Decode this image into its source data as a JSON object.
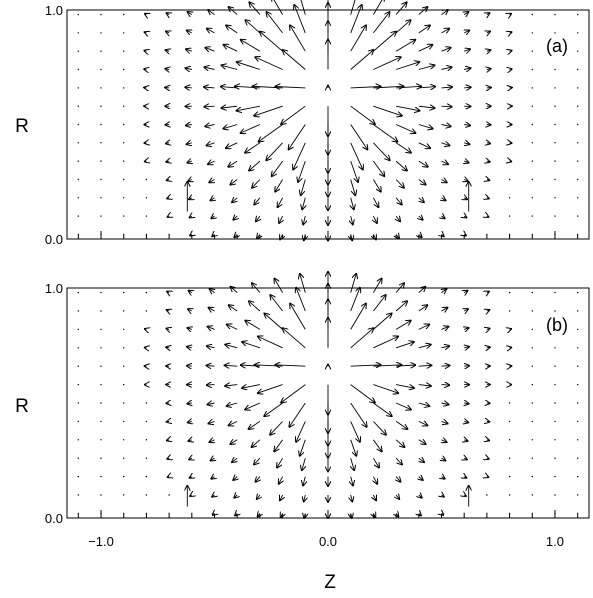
{
  "chart_data": [
    {
      "type": "quiver",
      "panel_label": "(a)",
      "xlim": [
        -1.15,
        1.15
      ],
      "ylim": [
        0.0,
        1.0
      ],
      "y_ticks": [
        {
          "value": 0.0,
          "label": "0.0"
        },
        {
          "value": 1.0,
          "label": "1.0"
        }
      ],
      "ylabel": "R",
      "x_grid": [
        -1.1,
        -1.0,
        -0.9,
        -0.8,
        -0.7,
        -0.6,
        -0.5,
        -0.4,
        -0.3,
        -0.2,
        -0.1,
        0.0,
        0.1,
        0.2,
        0.3,
        0.4,
        0.5,
        0.6,
        0.7,
        0.8,
        0.9,
        1.0,
        1.1
      ],
      "y_grid": [
        0.02,
        0.1,
        0.18,
        0.26,
        0.34,
        0.42,
        0.5,
        0.58,
        0.66,
        0.74,
        0.82,
        0.9,
        0.98
      ],
      "source_center": [
        0.0,
        0.66
      ],
      "source_strength": 0.55,
      "boundary_jets": [
        {
          "x": -0.62,
          "y": 0.12,
          "dx": 0.0,
          "dy": 0.13
        },
        {
          "x": 0.62,
          "y": 0.12,
          "dx": 0.0,
          "dy": 0.13
        }
      ]
    },
    {
      "type": "quiver",
      "panel_label": "(b)",
      "xlim": [
        -1.15,
        1.15
      ],
      "ylim": [
        0.0,
        1.0
      ],
      "y_ticks": [
        {
          "value": 0.0,
          "label": "0.0"
        },
        {
          "value": 1.0,
          "label": "1.0"
        }
      ],
      "ylabel": "R",
      "x_ticks": [
        {
          "value": -1.0,
          "label": "−1.0"
        },
        {
          "value": 0.0,
          "label": "0.0"
        },
        {
          "value": 1.0,
          "label": "1.0"
        }
      ],
      "xlabel": "Z",
      "x_grid": [
        -1.1,
        -1.0,
        -0.9,
        -0.8,
        -0.7,
        -0.6,
        -0.5,
        -0.4,
        -0.3,
        -0.2,
        -0.1,
        0.0,
        0.1,
        0.2,
        0.3,
        0.4,
        0.5,
        0.6,
        0.7,
        0.8,
        0.9,
        1.0,
        1.1
      ],
      "y_grid": [
        0.02,
        0.1,
        0.18,
        0.26,
        0.34,
        0.42,
        0.5,
        0.58,
        0.66,
        0.74,
        0.82,
        0.9,
        0.98
      ],
      "source_center": [
        0.0,
        0.66
      ],
      "source_strength": 0.42,
      "boundary_jets": [
        {
          "x": -0.62,
          "y": 0.05,
          "dx": 0.0,
          "dy": 0.09
        },
        {
          "x": 0.62,
          "y": 0.05,
          "dx": 0.0,
          "dy": 0.09
        }
      ]
    }
  ],
  "colors": {
    "ink": "#000000",
    "background": "#ffffff"
  }
}
